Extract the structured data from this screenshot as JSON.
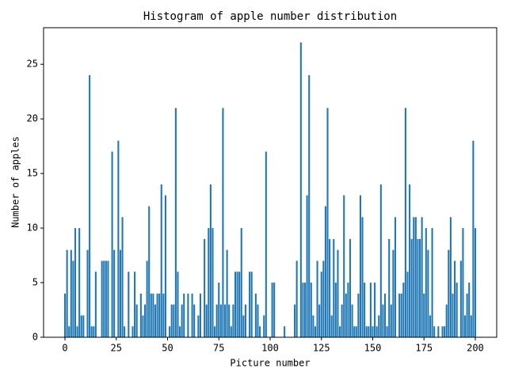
{
  "chart_data": {
    "type": "bar",
    "title": "Histogram of apple number distribution",
    "xlabel": "Picture number",
    "ylabel": "Number of apples",
    "x": [
      0,
      1,
      2,
      3,
      4,
      5,
      6,
      7,
      8,
      9,
      10,
      11,
      12,
      13,
      14,
      15,
      16,
      17,
      18,
      19,
      20,
      21,
      22,
      23,
      24,
      25,
      26,
      27,
      28,
      29,
      30,
      31,
      32,
      33,
      34,
      35,
      36,
      37,
      38,
      39,
      40,
      41,
      42,
      43,
      44,
      45,
      46,
      47,
      48,
      49,
      50,
      51,
      52,
      53,
      54,
      55,
      56,
      57,
      58,
      59,
      60,
      61,
      62,
      63,
      64,
      65,
      66,
      67,
      68,
      69,
      70,
      71,
      72,
      73,
      74,
      75,
      76,
      77,
      78,
      79,
      80,
      81,
      82,
      83,
      84,
      85,
      86,
      87,
      88,
      89,
      90,
      91,
      92,
      93,
      94,
      95,
      96,
      97,
      98,
      99,
      100,
      101,
      102,
      103,
      104,
      105,
      106,
      107,
      108,
      109,
      110,
      111,
      112,
      113,
      114,
      115,
      116,
      117,
      118,
      119,
      120,
      121,
      122,
      123,
      124,
      125,
      126,
      127,
      128,
      129,
      130,
      131,
      132,
      133,
      134,
      135,
      136,
      137,
      138,
      139,
      140,
      141,
      142,
      143,
      144,
      145,
      146,
      147,
      148,
      149,
      150,
      151,
      152,
      153,
      154,
      155,
      156,
      157,
      158,
      159,
      160,
      161,
      162,
      163,
      164,
      165,
      166,
      167,
      168,
      169,
      170,
      171,
      172,
      173,
      174,
      175,
      176,
      177,
      178,
      179,
      180,
      181,
      182,
      183,
      184,
      185,
      186,
      187,
      188,
      189,
      190,
      191,
      192,
      193,
      194,
      195,
      196,
      197,
      198,
      199,
      200
    ],
    "values": [
      4,
      8,
      1,
      8,
      7,
      10,
      1,
      10,
      2,
      2,
      0,
      8,
      24,
      1,
      1,
      6,
      0,
      0,
      7,
      7,
      7,
      7,
      0,
      17,
      8,
      0,
      18,
      8,
      11,
      1,
      0,
      6,
      0,
      1,
      6,
      3,
      0,
      4,
      2,
      3,
      7,
      12,
      4,
      4,
      3,
      4,
      4,
      14,
      4,
      13,
      0,
      1,
      3,
      3,
      21,
      6,
      1,
      3,
      4,
      0,
      4,
      0,
      4,
      3,
      0,
      2,
      4,
      0,
      9,
      3,
      10,
      14,
      10,
      1,
      3,
      5,
      3,
      21,
      3,
      8,
      3,
      1,
      3,
      6,
      6,
      6,
      10,
      2,
      3,
      0,
      6,
      6,
      0,
      4,
      3,
      1,
      0,
      2,
      17,
      0,
      0,
      5,
      5,
      0,
      0,
      0,
      0,
      1,
      0,
      0,
      0,
      0,
      3,
      7,
      0,
      27,
      5,
      5,
      13,
      24,
      5,
      2,
      1,
      7,
      3,
      6,
      7,
      12,
      21,
      9,
      2,
      9,
      5,
      8,
      1,
      3,
      13,
      4,
      5,
      9,
      3,
      1,
      1,
      4,
      13,
      11,
      5,
      1,
      1,
      5,
      1,
      5,
      1,
      2,
      14,
      3,
      4,
      1,
      9,
      3,
      8,
      11,
      0,
      4,
      4,
      5,
      21,
      6,
      14,
      9,
      11,
      11,
      9,
      9,
      11,
      4,
      10,
      8,
      2,
      10,
      1,
      0,
      1,
      0,
      1,
      1,
      3,
      8,
      11,
      4,
      7,
      5,
      0,
      7,
      10,
      2,
      4,
      5,
      2,
      18,
      10
    ],
    "color": "#1f77b4",
    "xlim": [
      -10.44,
      210.44
    ],
    "xticks": [
      0,
      25,
      50,
      75,
      100,
      125,
      150,
      175,
      200
    ],
    "ylim": [
      0,
      28.35
    ],
    "yticks": [
      0,
      5,
      10,
      15,
      20,
      25
    ],
    "grid": false
  }
}
